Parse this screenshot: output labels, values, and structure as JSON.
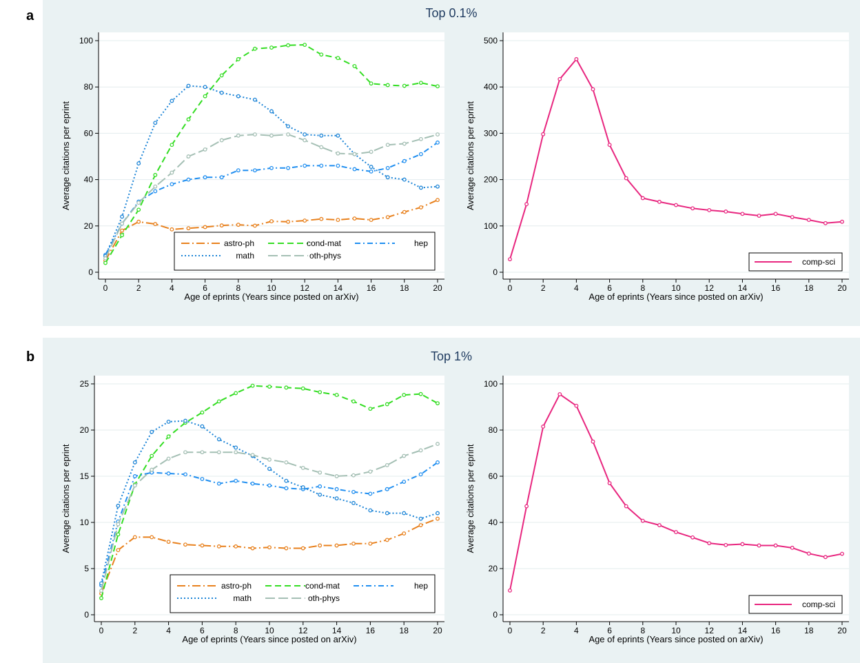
{
  "panels": [
    {
      "letter": "a",
      "title": "Top 0.1%",
      "charts": [
        {
          "type": "line",
          "ylabel": "Average citations per eprint",
          "xlabel": "Age of eprints (Years since posted on arXiv)",
          "ylim": [
            0,
            100
          ],
          "yticks": [
            0,
            20,
            40,
            60,
            80,
            100
          ],
          "xlim": [
            0,
            20
          ],
          "xticks": [
            0,
            2,
            4,
            6,
            8,
            10,
            12,
            14,
            16,
            18,
            20
          ],
          "legend_position": "bottom-right",
          "grid": true,
          "x": [
            0,
            1,
            2,
            3,
            4,
            5,
            6,
            7,
            8,
            9,
            10,
            11,
            12,
            13,
            14,
            15,
            16,
            17,
            18,
            19,
            20
          ],
          "series": [
            {
              "name": "astro-ph",
              "color": "#e8801c",
              "dash": "longdash-dot",
              "values": [
                5,
                18,
                21.8,
                20.8,
                18.5,
                19,
                19.5,
                20.2,
                20.5,
                20.1,
                22,
                21.8,
                22.3,
                23,
                22.6,
                23.2,
                22.6,
                23.8,
                26,
                28,
                31.2
              ]
            },
            {
              "name": "cond-mat",
              "color": "#33dd22",
              "dash": "dash",
              "values": [
                4,
                16,
                27,
                42,
                55,
                66,
                76,
                85,
                92,
                96.5,
                97,
                98,
                98.2,
                94,
                92.5,
                89,
                81.5,
                80.8,
                80.5,
                81.8,
                80.3
              ]
            },
            {
              "name": "hep",
              "color": "#1f8ef0",
              "dash": "dash-dot",
              "values": [
                7.5,
                21,
                30.5,
                35,
                38,
                40,
                41,
                41,
                44,
                44,
                45,
                45,
                46,
                46,
                46,
                44.5,
                43.5,
                45,
                48,
                51,
                56
              ]
            },
            {
              "name": "math",
              "color": "#1a83d6",
              "dash": "dot",
              "values": [
                7,
                24,
                47,
                64.5,
                74,
                80.5,
                80,
                77.5,
                76,
                74.5,
                69.5,
                63,
                59.5,
                59,
                59,
                51,
                45.5,
                41,
                40,
                36.5,
                37
              ]
            },
            {
              "name": "oth-phys",
              "color": "#a4bfb4",
              "dash": "longdash",
              "values": [
                6,
                21,
                30,
                37,
                43,
                50,
                53,
                57,
                59,
                59.5,
                59,
                59.5,
                57,
                54,
                51.3,
                51,
                52,
                55,
                55.5,
                57.5,
                59.5
              ]
            }
          ]
        },
        {
          "type": "line",
          "ylabel": "Average citations per eprint",
          "xlabel": "Age of eprints (Years since posted on arXiv)",
          "ylim": [
            0,
            500
          ],
          "yticks": [
            0,
            100,
            200,
            300,
            400,
            500
          ],
          "xlim": [
            0,
            20
          ],
          "xticks": [
            0,
            2,
            4,
            6,
            8,
            10,
            12,
            14,
            16,
            18,
            20
          ],
          "legend_position": "bottom-right",
          "grid": true,
          "x": [
            0,
            1,
            2,
            3,
            4,
            5,
            6,
            7,
            8,
            9,
            10,
            11,
            12,
            13,
            14,
            15,
            16,
            17,
            18,
            19,
            20
          ],
          "series": [
            {
              "name": "comp-sci",
              "color": "#e8267f",
              "dash": "solid",
              "values": [
                28,
                147,
                298,
                417,
                460,
                395,
                275,
                203,
                160,
                152,
                145,
                138,
                134,
                131,
                126,
                122,
                126,
                119,
                113,
                106,
                109
              ]
            }
          ]
        }
      ]
    },
    {
      "letter": "b",
      "title": "Top 1%",
      "charts": [
        {
          "type": "line",
          "ylabel": "Average citations per eprint",
          "xlabel": "Age of eprints (Years since posted on arXiv)",
          "ylim": [
            0,
            25
          ],
          "yticks": [
            0,
            5,
            10,
            15,
            20,
            25
          ],
          "xlim": [
            0,
            20
          ],
          "xticks": [
            0,
            2,
            4,
            6,
            8,
            10,
            12,
            14,
            16,
            18,
            20
          ],
          "legend_position": "bottom-right",
          "grid": true,
          "x": [
            0,
            1,
            2,
            3,
            4,
            5,
            6,
            7,
            8,
            9,
            10,
            11,
            12,
            13,
            14,
            15,
            16,
            17,
            18,
            19,
            20
          ],
          "series": [
            {
              "name": "astro-ph",
              "color": "#e8801c",
              "dash": "longdash-dot",
              "values": [
                2.3,
                7,
                8.4,
                8.4,
                7.9,
                7.6,
                7.5,
                7.4,
                7.4,
                7.2,
                7.3,
                7.2,
                7.2,
                7.5,
                7.5,
                7.7,
                7.7,
                8.1,
                8.8,
                9.7,
                10.4
              ]
            },
            {
              "name": "cond-mat",
              "color": "#33dd22",
              "dash": "dash",
              "values": [
                1.8,
                8.7,
                14.1,
                17.2,
                19.3,
                20.8,
                21.9,
                23.1,
                24,
                24.8,
                24.7,
                24.6,
                24.5,
                24.1,
                23.8,
                23.1,
                22.3,
                22.8,
                23.8,
                23.9,
                22.9
              ]
            },
            {
              "name": "hep",
              "color": "#1f8ef0",
              "dash": "dash-dot",
              "values": [
                3.2,
                10.1,
                15,
                15.4,
                15.3,
                15.2,
                14.7,
                14.2,
                14.5,
                14.2,
                14,
                13.7,
                13.6,
                13.9,
                13.6,
                13.3,
                13.1,
                13.6,
                14.4,
                15.2,
                16.5
              ]
            },
            {
              "name": "math",
              "color": "#1a83d6",
              "dash": "dot",
              "values": [
                3.4,
                11.8,
                16.5,
                19.8,
                20.9,
                21,
                20.4,
                19,
                18.1,
                17.2,
                15.8,
                14.5,
                13.8,
                13,
                12.6,
                12.1,
                11.3,
                11,
                11,
                10.4,
                11
              ]
            },
            {
              "name": "oth-phys",
              "color": "#a4bfb4",
              "dash": "longdash",
              "values": [
                2.6,
                9.8,
                14,
                15.7,
                16.9,
                17.6,
                17.6,
                17.6,
                17.6,
                17.3,
                16.8,
                16.5,
                15.9,
                15.4,
                15,
                15.1,
                15.5,
                16.2,
                17.2,
                17.8,
                18.5
              ]
            }
          ]
        },
        {
          "type": "line",
          "ylabel": "Average citations per eprint",
          "xlabel": "Age of eprints (Years since posted on arXiv)",
          "ylim": [
            0,
            100
          ],
          "yticks": [
            0,
            20,
            40,
            60,
            80,
            100
          ],
          "xlim": [
            0,
            20
          ],
          "xticks": [
            0,
            2,
            4,
            6,
            8,
            10,
            12,
            14,
            16,
            18,
            20
          ],
          "legend_position": "bottom-right",
          "grid": true,
          "x": [
            0,
            1,
            2,
            3,
            4,
            5,
            6,
            7,
            8,
            9,
            10,
            11,
            12,
            13,
            14,
            15,
            16,
            17,
            18,
            19,
            20
          ],
          "series": [
            {
              "name": "comp-sci",
              "color": "#e8267f",
              "dash": "solid",
              "values": [
                10.5,
                47,
                81.5,
                95.5,
                90.5,
                75,
                57,
                47,
                40.7,
                38.8,
                35.8,
                33.5,
                31,
                30.2,
                30.6,
                30,
                30,
                29,
                26.5,
                25,
                26.4
              ]
            }
          ]
        }
      ]
    }
  ]
}
